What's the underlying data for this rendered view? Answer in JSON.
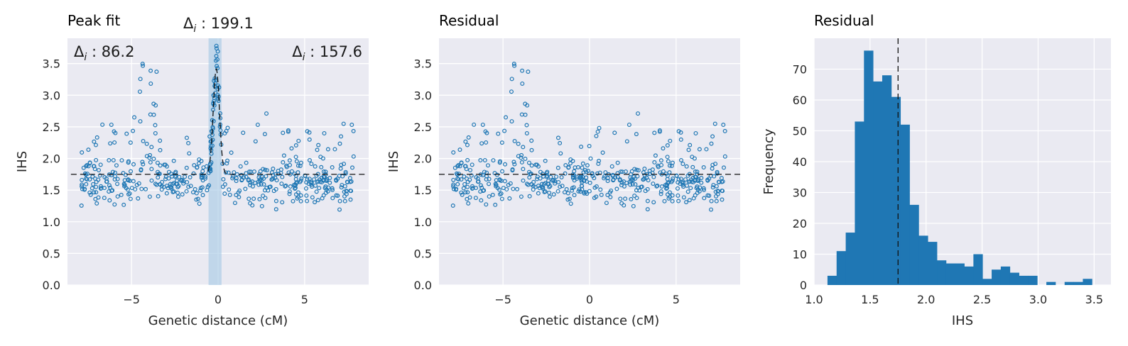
{
  "chart_data": [
    {
      "type": "scatter",
      "title": "Peak fit",
      "xlabel": "Genetic distance (cM)",
      "ylabel": "IHS",
      "xlim": [
        -8.7,
        8.7
      ],
      "ylim": [
        0,
        3.9
      ],
      "xticks": [
        -5,
        0,
        5
      ],
      "xtick_labels": [
        "−5",
        "0",
        "5"
      ],
      "yticks": [
        0.0,
        0.5,
        1.0,
        1.5,
        2.0,
        2.5,
        3.0,
        3.5
      ],
      "ytick_labels": [
        "0.0",
        "0.5",
        "1.0",
        "1.5",
        "2.0",
        "2.5",
        "3.0",
        "3.5"
      ],
      "grid": true,
      "baseline": 1.75,
      "peak": {
        "center": -0.1,
        "height": 3.42,
        "width": 0.18
      },
      "highlight_span": [
        -0.55,
        0.2
      ],
      "annotations": [
        {
          "label": "Δi : 86.2",
          "position": "top-left"
        },
        {
          "label": "Δi : 199.1",
          "position": "above-highlight"
        },
        {
          "label": "Δi : 157.6",
          "position": "top-right"
        }
      ],
      "scatter_summary": "dense points between x = -8 and 8, mostly y 1.2–2.4, cluster up to 3.55 near x ≈ -4.7 to -3.5, spike up to 3.75 near x ≈ 0"
    },
    {
      "type": "scatter",
      "title": "Residual",
      "xlabel": "Genetic distance (cM)",
      "ylabel": "IHS",
      "xlim": [
        -8.7,
        8.7
      ],
      "ylim": [
        0,
        3.9
      ],
      "xticks": [
        -5,
        0,
        5
      ],
      "xtick_labels": [
        "−5",
        "0",
        "5"
      ],
      "yticks": [
        0.0,
        0.5,
        1.0,
        1.5,
        2.0,
        2.5,
        3.0,
        3.5
      ],
      "ytick_labels": [
        "0.0",
        "0.5",
        "1.0",
        "1.5",
        "2.0",
        "2.5",
        "3.0",
        "3.5"
      ],
      "grid": true,
      "baseline": 1.75
    },
    {
      "type": "bar",
      "title": "Residual",
      "xlabel": "IHS",
      "ylabel": "Frequency",
      "xlim": [
        1.0,
        3.65
      ],
      "ylim": [
        0,
        80
      ],
      "xticks": [
        1.0,
        1.5,
        2.0,
        2.5,
        3.0,
        3.5
      ],
      "xtick_labels": [
        "1.0",
        "1.5",
        "2.0",
        "2.5",
        "3.0",
        "3.5"
      ],
      "yticks": [
        0,
        10,
        20,
        30,
        40,
        50,
        60,
        70
      ],
      "ytick_labels": [
        "0",
        "10",
        "20",
        "30",
        "40",
        "50",
        "60",
        "70"
      ],
      "grid": true,
      "bin_start": 1.12,
      "bin_width": 0.0814,
      "values": [
        3,
        11,
        17,
        53,
        76,
        66,
        68,
        61,
        52,
        26,
        16,
        14,
        8,
        7,
        7,
        6,
        10,
        2,
        5,
        6,
        4,
        3,
        3,
        0,
        1,
        0,
        1,
        1,
        2
      ],
      "vline": 1.75
    }
  ]
}
